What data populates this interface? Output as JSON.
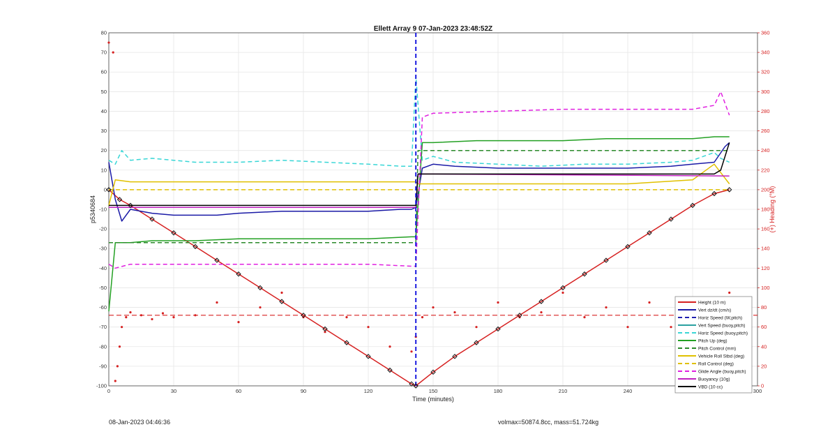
{
  "chart_data": {
    "type": "line",
    "title": "Ellett Array 9 07-Jan-2023 23:48:52Z",
    "xlabel": "Time (minutes)",
    "ylabel": "p5340684",
    "ylabel_right": "(+) Heading (°M)",
    "xlim": [
      0,
      300
    ],
    "ylim": [
      -100,
      80
    ],
    "ylim_right": [
      0,
      360
    ],
    "xticks": [
      "0",
      "30",
      "60",
      "90",
      "120",
      "150",
      "180",
      "210",
      "240",
      "270",
      "300"
    ],
    "yticks": [
      "-100",
      "-90",
      "-80",
      "-70",
      "-60",
      "-50",
      "-40",
      "-30",
      "-20",
      "-10",
      "0",
      "10",
      "20",
      "30",
      "40",
      "50",
      "60",
      "70",
      "80"
    ],
    "yticks_right": [
      "0",
      "20",
      "40",
      "60",
      "80",
      "100",
      "120",
      "140",
      "160",
      "180",
      "200",
      "220",
      "240",
      "260",
      "280",
      "300",
      "320",
      "340",
      "360"
    ],
    "grid": true,
    "legend_position": "bottom-right",
    "apogee_marker_x": 142,
    "heading_mean_deg": 72,
    "series": [
      {
        "name": "Height (10 m)",
        "color": "#d62020",
        "style": "solid",
        "x": [
          0,
          5,
          10,
          20,
          30,
          40,
          50,
          60,
          70,
          80,
          90,
          100,
          110,
          120,
          130,
          140,
          142,
          150,
          160,
          170,
          180,
          190,
          200,
          210,
          220,
          230,
          240,
          250,
          260,
          270,
          280,
          287
        ],
        "y": [
          0,
          -5,
          -8,
          -15,
          -22,
          -29,
          -36,
          -43,
          -50,
          -57,
          -64,
          -71,
          -78,
          -85,
          -92,
          -99,
          -100,
          -93,
          -85,
          -78,
          -71,
          -64,
          -57,
          -50,
          -43,
          -36,
          -29,
          -22,
          -15,
          -8,
          -2,
          0
        ]
      },
      {
        "name": "Vert dz/dt (cm/s)",
        "color": "#1a1aa6",
        "style": "solid",
        "x": [
          0,
          3,
          6,
          10,
          20,
          30,
          40,
          50,
          60,
          80,
          100,
          120,
          135,
          140,
          142,
          145,
          150,
          160,
          180,
          200,
          220,
          240,
          260,
          270,
          280,
          285,
          287
        ],
        "y": [
          14,
          -5,
          -16,
          -10,
          -12,
          -13,
          -13,
          -13,
          -12,
          -11,
          -11,
          -11,
          -10,
          -10,
          -9,
          11,
          13,
          12,
          11,
          11,
          11,
          11,
          12,
          13,
          14,
          22,
          24
        ]
      },
      {
        "name": "Horiz Speed (W,pitch)",
        "color": "#2020b0",
        "style": "dashed",
        "x": [],
        "y": []
      },
      {
        "name": "Vert Speed (buoy,pitch)",
        "color": "#2aa0a0",
        "style": "solid",
        "x": [],
        "y": []
      },
      {
        "name": "Horiz Speed (buoy,pitch)",
        "color": "#38d6d6",
        "style": "dashed",
        "x": [
          0,
          3,
          6,
          10,
          20,
          30,
          40,
          60,
          80,
          100,
          120,
          135,
          140,
          142,
          145,
          150,
          160,
          180,
          200,
          220,
          240,
          260,
          270,
          280,
          283,
          287
        ],
        "y": [
          15,
          13,
          20,
          15,
          16,
          15,
          14,
          14,
          15,
          14,
          13,
          12,
          12,
          58,
          15,
          17,
          14,
          13,
          12,
          13,
          13,
          14,
          15,
          19,
          16,
          14
        ]
      },
      {
        "name": "Pitch Up (deg)",
        "color": "#22a022",
        "style": "solid",
        "x": [
          0,
          3,
          10,
          20,
          40,
          60,
          80,
          100,
          120,
          140,
          142,
          145,
          150,
          170,
          190,
          210,
          230,
          250,
          270,
          280,
          287
        ],
        "y": [
          -62,
          -27,
          -27,
          -26,
          -26,
          -25,
          -25,
          -25,
          -25,
          -24,
          -24,
          24,
          24,
          25,
          25,
          25,
          26,
          26,
          26,
          27,
          27
        ]
      },
      {
        "name": "Pitch Control (mm)",
        "color": "#2a8a2a",
        "style": "dashed",
        "x": [
          0,
          142,
          143,
          287
        ],
        "y": [
          -27,
          -27,
          20,
          20
        ]
      },
      {
        "name": "Vehicle Roll Stbd (deg)",
        "color": "#e0c000",
        "style": "solid",
        "x": [
          0,
          3,
          10,
          30,
          60,
          90,
          120,
          140,
          142,
          143,
          150,
          180,
          210,
          240,
          270,
          280,
          287
        ],
        "y": [
          -8,
          5,
          4,
          4,
          4,
          4,
          4,
          4,
          4,
          3,
          3,
          3,
          3,
          3,
          5,
          13,
          3
        ]
      },
      {
        "name": "Roll Control (deg)",
        "color": "#e0c000",
        "style": "dashed",
        "x": [
          0,
          142,
          143,
          287
        ],
        "y": [
          0,
          0,
          0,
          0
        ]
      },
      {
        "name": "Glide Angle (buoy,pitch)",
        "color": "#e020e0",
        "style": "dashed",
        "x": [
          0,
          3,
          10,
          30,
          60,
          90,
          120,
          140,
          142,
          145,
          150,
          180,
          210,
          240,
          270,
          280,
          283,
          287
        ],
        "y": [
          -38,
          -40,
          -38,
          -38,
          -38,
          -38,
          -38,
          -39,
          -39,
          37,
          39,
          40,
          41,
          41,
          41,
          43,
          50,
          38
        ]
      },
      {
        "name": "Buoyancy (10g)",
        "color": "#c020c0",
        "style": "solid",
        "x": [
          0,
          142,
          143,
          150,
          287
        ],
        "y": [
          -9,
          -9,
          8,
          8,
          7
        ]
      },
      {
        "name": "VBD (10 cc)",
        "color": "#000000",
        "style": "solid",
        "x": [
          0,
          142,
          143,
          280,
          283,
          287
        ],
        "y": [
          -8,
          -8,
          8,
          8,
          10,
          24
        ]
      },
      {
        "name": "Heading",
        "color": "#d62020",
        "style": "dotted",
        "axis": "right",
        "x": [
          0,
          2,
          3,
          4,
          5,
          6,
          8,
          10,
          15,
          20,
          25,
          30,
          40,
          50,
          60,
          70,
          80,
          90,
          100,
          110,
          120,
          130,
          140,
          142,
          145,
          150,
          160,
          170,
          180,
          190,
          200,
          210,
          220,
          230,
          240,
          250,
          260,
          270,
          280,
          285,
          287
        ],
        "y": [
          350,
          340,
          5,
          20,
          40,
          60,
          70,
          75,
          72,
          68,
          74,
          70,
          72,
          85,
          65,
          80,
          95,
          70,
          55,
          70,
          60,
          40,
          35,
          50,
          70,
          80,
          75,
          60,
          85,
          70,
          75,
          95,
          70,
          80,
          60,
          85,
          60,
          80,
          60,
          70,
          95
        ]
      }
    ]
  },
  "footer": {
    "left": "08-Jan-2023 04:46:36",
    "right": "volmax=50874.8cc, mass=51.724kg"
  }
}
